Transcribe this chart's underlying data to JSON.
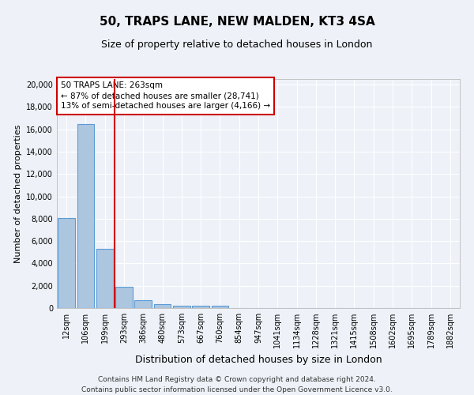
{
  "title": "50, TRAPS LANE, NEW MALDEN, KT3 4SA",
  "subtitle": "Size of property relative to detached houses in London",
  "xlabel": "Distribution of detached houses by size in London",
  "ylabel": "Number of detached properties",
  "footer_line1": "Contains HM Land Registry data © Crown copyright and database right 2024.",
  "footer_line2": "Contains public sector information licensed under the Open Government Licence v3.0.",
  "categories": [
    "12sqm",
    "106sqm",
    "199sqm",
    "293sqm",
    "386sqm",
    "480sqm",
    "573sqm",
    "667sqm",
    "760sqm",
    "854sqm",
    "947sqm",
    "1041sqm",
    "1134sqm",
    "1228sqm",
    "1321sqm",
    "1415sqm",
    "1508sqm",
    "1602sqm",
    "1695sqm",
    "1789sqm",
    "1882sqm"
  ],
  "values": [
    8050,
    16500,
    5300,
    1900,
    700,
    350,
    200,
    200,
    200,
    0,
    0,
    0,
    0,
    0,
    0,
    0,
    0,
    0,
    0,
    0,
    0
  ],
  "bar_color": "#adc6e0",
  "bar_edge_color": "#5b9bd5",
  "background_color": "#eef2f8",
  "grid_color": "#ffffff",
  "vline_color": "#cc0000",
  "ylim": [
    0,
    20500
  ],
  "yticks": [
    0,
    2000,
    4000,
    6000,
    8000,
    10000,
    12000,
    14000,
    16000,
    18000,
    20000
  ],
  "annotation_text": "50 TRAPS LANE: 263sqm\n← 87% of detached houses are smaller (28,741)\n13% of semi-detached houses are larger (4,166) →",
  "title_fontsize": 11,
  "subtitle_fontsize": 9,
  "ylabel_fontsize": 8,
  "xlabel_fontsize": 9,
  "tick_fontsize": 7,
  "annotation_fontsize": 7.5,
  "footer_fontsize": 6.5
}
